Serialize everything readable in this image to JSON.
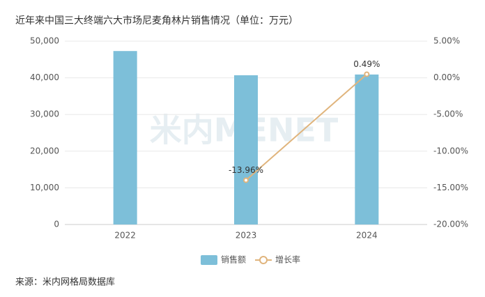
{
  "chart_data": {
    "type": "bar",
    "title": "近年来中国三大终端六大市场尼麦角林片销售情况（单位：万元）",
    "categories": [
      "2022",
      "2023",
      "2024"
    ],
    "series": [
      {
        "name": "销售额",
        "type": "bar",
        "color": "#7dbfd9",
        "values": [
          47300,
          40700,
          40900
        ]
      },
      {
        "name": "增长率",
        "type": "line",
        "axis": "y2",
        "color": "#e0b47c",
        "values": [
          null,
          -13.96,
          0.49
        ],
        "value_labels": [
          null,
          "-13.96%",
          "0.49%"
        ]
      }
    ],
    "ylim": [
      0,
      50000
    ],
    "yticks": [
      0,
      {
        "value": 10000,
        "label": "10,000"
      },
      {
        "value": 20000,
        "label": "20,000"
      },
      {
        "value": 30000,
        "label": "30,000"
      },
      {
        "value": 40000,
        "label": "40,000"
      },
      {
        "value": 50000,
        "label": "50,000"
      }
    ],
    "y2lim": [
      -20,
      5
    ],
    "y2ticks": [
      {
        "value": -20,
        "label": "-20.00%"
      },
      {
        "value": -15,
        "label": "-15.00%"
      },
      {
        "value": -10,
        "label": "-10.00%"
      },
      {
        "value": -5,
        "label": "-5.00%"
      },
      {
        "value": 0,
        "label": "0.00%"
      },
      {
        "value": 5,
        "label": "5.00%"
      }
    ],
    "grid": true,
    "legend": "bottom",
    "watermark": "米内MENET",
    "source": "来源：米内网格局数据库"
  }
}
